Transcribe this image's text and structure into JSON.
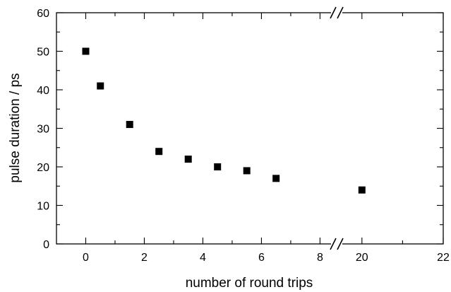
{
  "chart_data": {
    "type": "scatter",
    "xlabel": "number of round trips",
    "ylabel": "pulse duration / ps",
    "axis_break": {
      "x_from": 8,
      "x_to": 20
    },
    "segments": [
      {
        "xlim": [
          -1,
          8.4
        ],
        "ticks_major": [
          0,
          2,
          4,
          6,
          8
        ],
        "ticks_minor": [
          1,
          3,
          5,
          7
        ]
      },
      {
        "xlim": [
          19.5,
          22
        ],
        "ticks_major": [
          20,
          22
        ],
        "ticks_minor": [
          21
        ]
      }
    ],
    "ylim": [
      0,
      60
    ],
    "yticks_major": [
      0,
      10,
      20,
      30,
      40,
      50,
      60
    ],
    "yticks_minor": [
      5,
      15,
      25,
      35,
      45,
      55
    ],
    "grid": false,
    "marker": "square",
    "marker_color": "#000000",
    "series": [
      {
        "points": [
          {
            "x": 0,
            "y": 50
          },
          {
            "x": 0.5,
            "y": 41
          },
          {
            "x": 1.5,
            "y": 31
          },
          {
            "x": 2.5,
            "y": 24
          },
          {
            "x": 3.5,
            "y": 22
          },
          {
            "x": 4.5,
            "y": 20
          },
          {
            "x": 5.5,
            "y": 19
          },
          {
            "x": 6.5,
            "y": 17
          },
          {
            "x": 20,
            "y": 14
          }
        ]
      }
    ]
  }
}
